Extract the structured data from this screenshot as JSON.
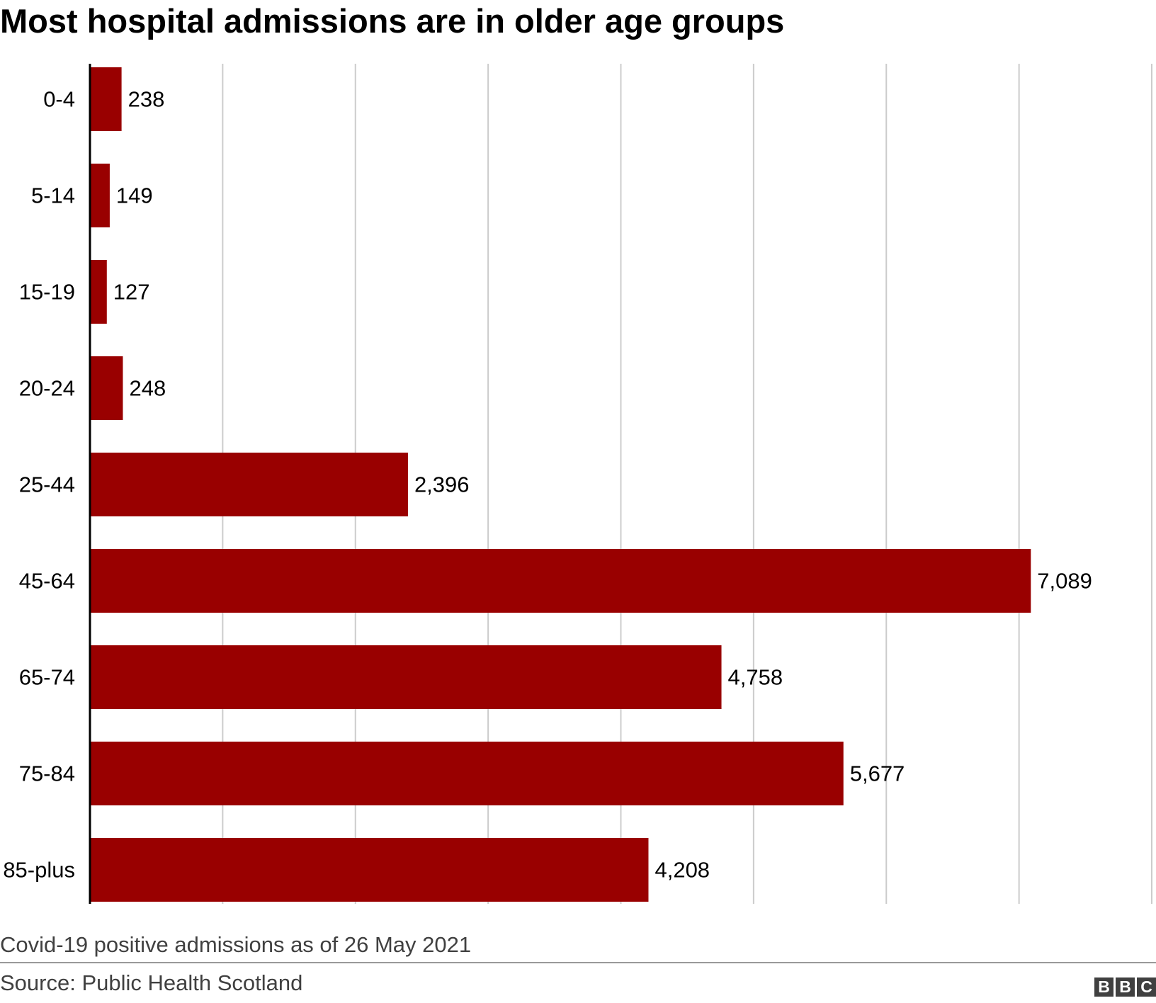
{
  "header": {
    "title": "Most hospital admissions are in older age groups"
  },
  "footer": {
    "subtitle": "Covid-19 positive admissions as of 26 May 2021",
    "source": "Source: Public Health Scotland",
    "logo_letters": [
      "B",
      "B",
      "C"
    ]
  },
  "colors": {
    "bar": "#990000",
    "grid": "#cccccc",
    "axis": "#000000",
    "text": "#000000",
    "footer_text": "#404040",
    "logo_bg": "#404040"
  },
  "chart_data": {
    "type": "bar",
    "orientation": "horizontal",
    "title": "Most hospital admissions are in older age groups",
    "xlabel": "",
    "ylabel": "",
    "categories": [
      "0-4",
      "5-14",
      "15-19",
      "20-24",
      "25-44",
      "45-64",
      "65-74",
      "75-84",
      "85-plus"
    ],
    "values": [
      238,
      149,
      127,
      248,
      2396,
      7089,
      4758,
      5677,
      4208
    ],
    "value_labels": [
      "238",
      "149",
      "127",
      "248",
      "2,396",
      "7,089",
      "4,758",
      "5,677",
      "4,208"
    ],
    "xlim": [
      0,
      8000
    ],
    "grid_step": 1000,
    "grid": true,
    "show_x_tick_labels": false
  }
}
